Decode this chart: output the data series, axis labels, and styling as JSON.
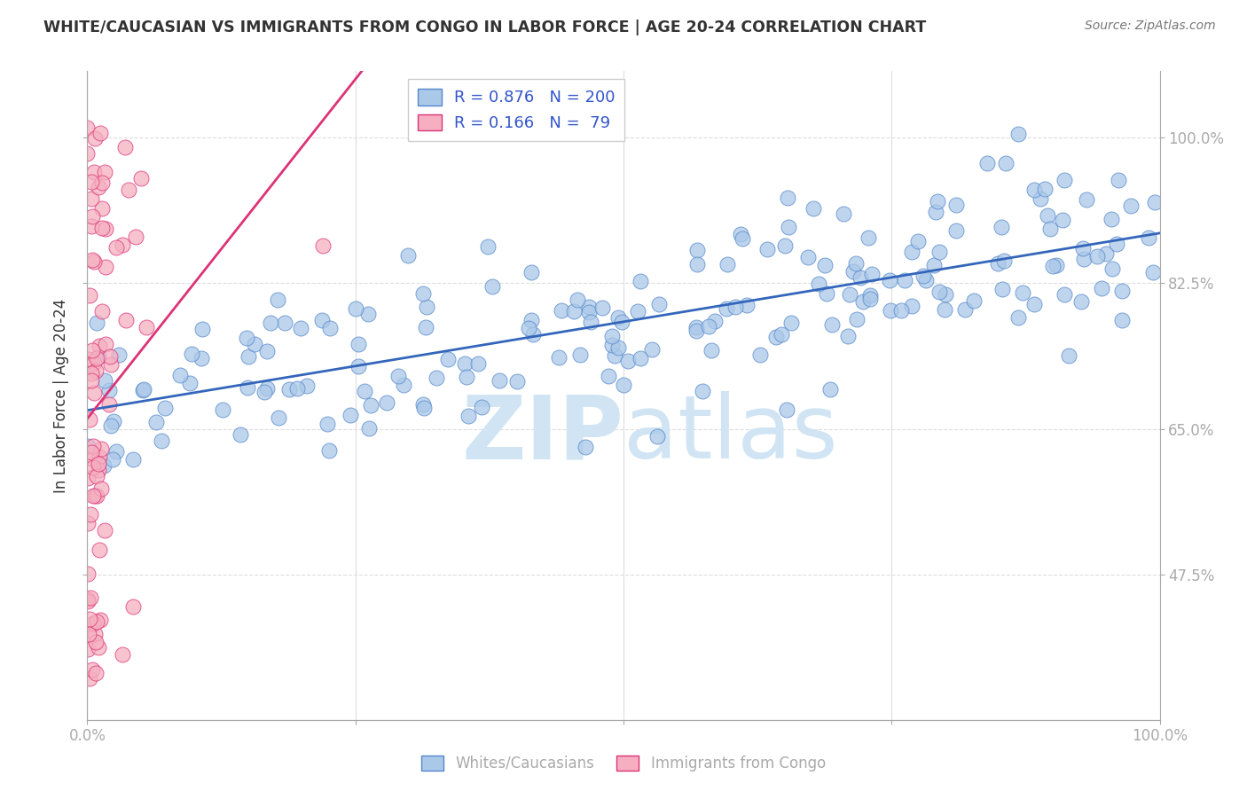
{
  "title": "WHITE/CAUCASIAN VS IMMIGRANTS FROM CONGO IN LABOR FORCE | AGE 20-24 CORRELATION CHART",
  "source": "Source: ZipAtlas.com",
  "xlabel": "",
  "ylabel": "In Labor Force | Age 20-24",
  "xmin": 0.0,
  "xmax": 1.0,
  "ymin": 0.3,
  "ymax": 1.08,
  "yticks": [
    0.475,
    0.65,
    0.825,
    1.0
  ],
  "ytick_labels": [
    "47.5%",
    "65.0%",
    "82.5%",
    "100.0%"
  ],
  "xticks": [
    0.0,
    0.25,
    0.5,
    0.75,
    1.0
  ],
  "xtick_labels": [
    "0.0%",
    "",
    "",
    "",
    "100.0%"
  ],
  "blue_R": 0.876,
  "blue_N": 200,
  "pink_R": 0.166,
  "pink_N": 79,
  "blue_color": "#aac8e8",
  "pink_color": "#f5afc0",
  "blue_scatter_edge": "#5588cc",
  "pink_scatter_edge": "#dd3377",
  "blue_line_color": "#3366bb",
  "pink_line_color": "#dd3377",
  "pink_line_dashed": "#dd99bb",
  "legend_R_color": "#3355cc",
  "watermark_zip": "ZIP",
  "watermark_atlas": "atlas",
  "watermark_color": "#d0e4f4",
  "title_color": "#333333",
  "source_color": "#777777",
  "ylabel_color": "#333333",
  "axis_color": "#aaaaaa",
  "grid_color": "#dddddd",
  "background_color": "#ffffff"
}
